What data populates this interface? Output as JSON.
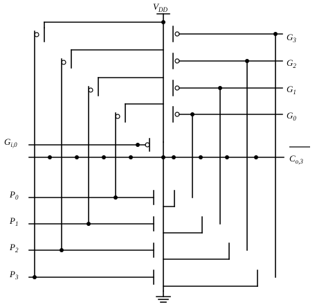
{
  "diagram": {
    "supply": {
      "main": "V",
      "sub": "DD"
    },
    "carry_in": {
      "main": "G",
      "sub": "i,0"
    },
    "carry_out": {
      "main": "C",
      "sub": "o,3"
    },
    "outputs": [
      {
        "main": "G",
        "sub": "3"
      },
      {
        "main": "G",
        "sub": "2"
      },
      {
        "main": "G",
        "sub": "1"
      },
      {
        "main": "G",
        "sub": "0"
      }
    ],
    "inputs": [
      {
        "main": "P",
        "sub": "0"
      },
      {
        "main": "P",
        "sub": "1"
      },
      {
        "main": "P",
        "sub": "2"
      },
      {
        "main": "P",
        "sub": "3"
      }
    ]
  }
}
